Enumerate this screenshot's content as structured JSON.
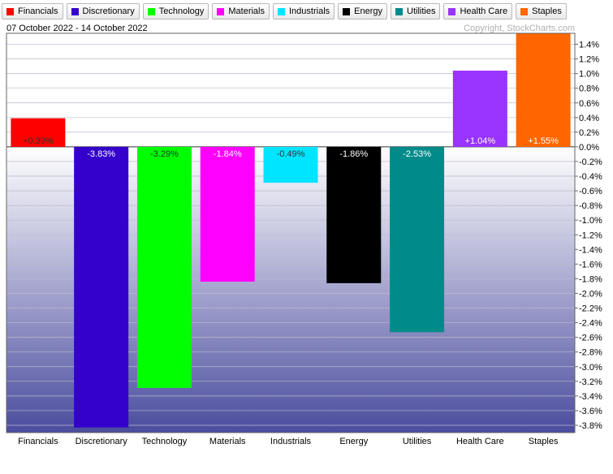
{
  "date_range": "07 October 2022 - 14 October 2022",
  "copyright": "Copyright, StockCharts.com",
  "legend": [
    {
      "label": "Financials",
      "color": "#ff0000"
    },
    {
      "label": "Discretionary",
      "color": "#3300cc"
    },
    {
      "label": "Technology",
      "color": "#00ff00"
    },
    {
      "label": "Materials",
      "color": "#ff00ff"
    },
    {
      "label": "Industrials",
      "color": "#00e5ff"
    },
    {
      "label": "Energy",
      "color": "#000000"
    },
    {
      "label": "Utilities",
      "color": "#008b8b"
    },
    {
      "label": "Health Care",
      "color": "#9933ff"
    },
    {
      "label": "Staples",
      "color": "#ff6600"
    }
  ],
  "chart_data": {
    "type": "bar",
    "categories": [
      "Financials",
      "Discretionary",
      "Technology",
      "Materials",
      "Industrials",
      "Energy",
      "Utilities",
      "Health Care",
      "Staples"
    ],
    "values": [
      0.39,
      -3.83,
      -3.29,
      -1.84,
      -0.49,
      -1.86,
      -2.53,
      1.04,
      1.55
    ],
    "data_labels": [
      "+0.39%",
      "-3.83%",
      "-3.29%",
      "-1.84%",
      "-0.49%",
      "-1.86%",
      "-2.53%",
      "+1.04%",
      "+1.55%"
    ],
    "colors": [
      "#ff0000",
      "#3300cc",
      "#00ff00",
      "#ff00ff",
      "#00e5ff",
      "#000000",
      "#008b8b",
      "#9933ff",
      "#ff6600"
    ],
    "ylim": [
      -3.9,
      1.55
    ],
    "y_ticks": [
      1.4,
      1.2,
      1.0,
      0.8,
      0.6,
      0.4,
      0.2,
      0.0,
      -0.2,
      -0.4,
      -0.6,
      -0.8,
      -1.0,
      -1.2,
      -1.4,
      -1.6,
      -1.8,
      -2.0,
      -2.2,
      -2.4,
      -2.6,
      -2.8,
      -3.0,
      -3.2,
      -3.4,
      -3.6,
      -3.8
    ],
    "y_tick_labels": [
      "1.4%",
      "1.2%",
      "1.0%",
      "0.8%",
      "0.6%",
      "0.4%",
      "0.2%",
      "0.0%",
      "-0.2%",
      "-0.4%",
      "-0.6%",
      "-0.8%",
      "-1.0%",
      "-1.2%",
      "-1.4%",
      "-1.6%",
      "-1.8%",
      "-2.0%",
      "-2.2%",
      "-2.4%",
      "-2.6%",
      "-2.8%",
      "-3.0%",
      "-3.2%",
      "-3.4%",
      "-3.6%",
      "-3.8%"
    ],
    "grid": true,
    "legend_position": "top"
  }
}
